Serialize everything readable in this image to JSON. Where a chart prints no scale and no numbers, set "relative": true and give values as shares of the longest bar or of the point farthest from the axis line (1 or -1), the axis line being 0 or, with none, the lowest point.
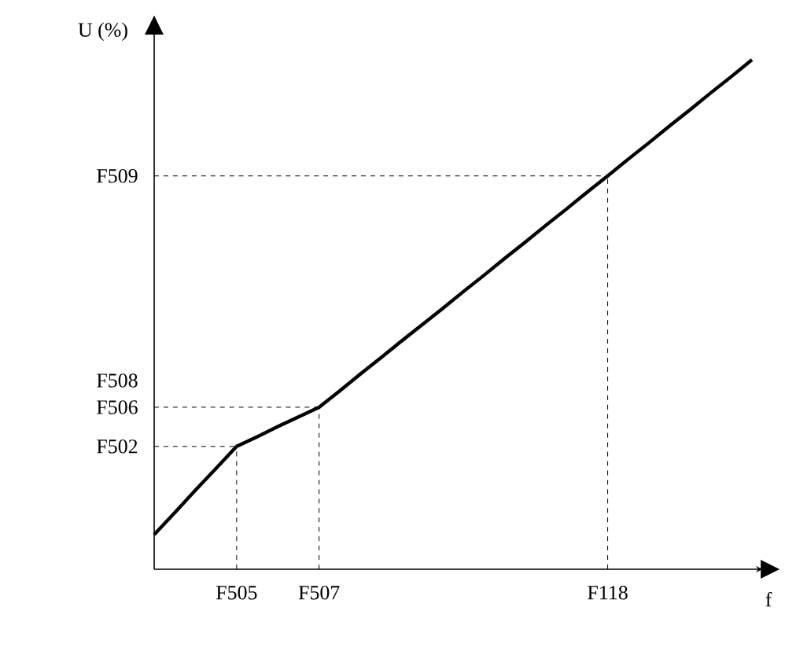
{
  "chart_data": {
    "type": "line",
    "relative": true,
    "xlabel": "f",
    "ylabel": "U (%)",
    "categories": [
      null,
      null,
      null,
      null,
      "F505",
      null,
      null,
      null,
      "F507",
      null,
      null,
      null,
      null,
      null,
      null,
      null,
      null,
      null,
      null,
      null,
      null,
      null,
      "F118",
      null,
      null,
      null,
      null,
      null,
      null,
      null
    ],
    "values": [
      0.068,
      0.111,
      0.155,
      0.198,
      0.241,
      0.26,
      0.28,
      0.299,
      0.318,
      0.35,
      0.383,
      0.415,
      0.448,
      0.48,
      0.512,
      0.545,
      0.577,
      0.61,
      0.642,
      0.675,
      0.707,
      0.74,
      0.772,
      0.805,
      0.837,
      0.87,
      0.902,
      0.935,
      0.967,
      1.0
    ],
    "color": "#000000",
    "line_style": "solid",
    "marker": "none",
    "grid": false,
    "ref_lines": [
      {
        "axis": "x",
        "value": "F505",
        "line_style": "dashed"
      },
      {
        "axis": "x",
        "value": "F507",
        "line_style": "dashed"
      },
      {
        "axis": "x",
        "value": "F118",
        "line_style": "dashed"
      },
      {
        "axis": "y",
        "value": 0.241,
        "label": "F502",
        "line_style": "dashed"
      },
      {
        "axis": "y",
        "value": 0.318,
        "label": "F506",
        "line_style": "dashed"
      },
      {
        "axis": "y",
        "value": 0.772,
        "label": "F509",
        "line_style": "dashed"
      }
    ],
    "annotations": [
      "F508"
    ]
  }
}
